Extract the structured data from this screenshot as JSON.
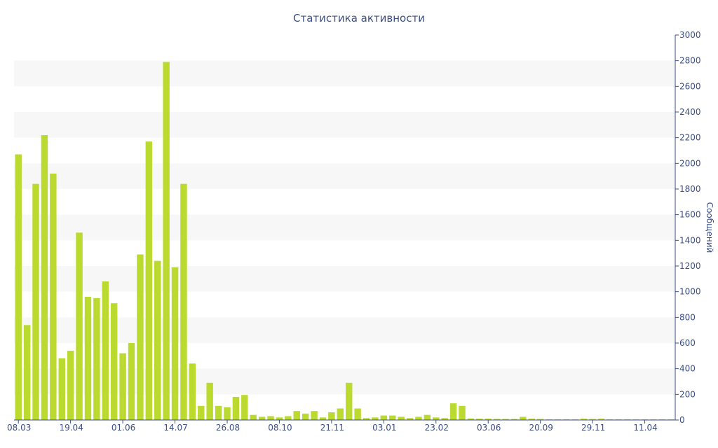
{
  "chart_data": {
    "type": "bar",
    "title": "Статистика активности",
    "ylabel": "Сообщений",
    "xlabel": "",
    "ylim": [
      0,
      3000
    ],
    "y_ticks": [
      0,
      200,
      400,
      600,
      800,
      1000,
      1200,
      1400,
      1600,
      1800,
      2000,
      2200,
      2400,
      2600,
      2800,
      3000
    ],
    "y_axis_side": "right",
    "grid": "alternating horizontal bands",
    "legend": "none",
    "bar_color": "#bada2f",
    "band_color": "#f7f7f7",
    "text_color": "#3b4f86",
    "x_tick_labels": [
      "08.03",
      "19.04",
      "01.06",
      "14.07",
      "26.08",
      "08.10",
      "21.11",
      "03.01",
      "23.02",
      "03.06",
      "20.09",
      "29.11",
      "11.04"
    ],
    "x_tick_bar_index": [
      0,
      6,
      12,
      18,
      24,
      30,
      36,
      42,
      48,
      54,
      60,
      66,
      72
    ],
    "values": [
      2070,
      740,
      1840,
      2220,
      1920,
      480,
      540,
      1460,
      960,
      950,
      1080,
      910,
      520,
      600,
      1290,
      2170,
      1240,
      2790,
      1190,
      1840,
      440,
      110,
      290,
      110,
      100,
      180,
      195,
      40,
      25,
      30,
      20,
      30,
      70,
      50,
      70,
      20,
      60,
      90,
      290,
      90,
      15,
      20,
      35,
      35,
      25,
      15,
      25,
      40,
      20,
      15,
      130,
      110,
      12,
      10,
      10,
      8,
      8,
      8,
      25,
      10,
      8,
      5,
      5,
      5,
      5,
      10,
      8,
      10,
      5,
      5,
      5,
      5,
      5,
      5,
      5,
      5
    ]
  }
}
